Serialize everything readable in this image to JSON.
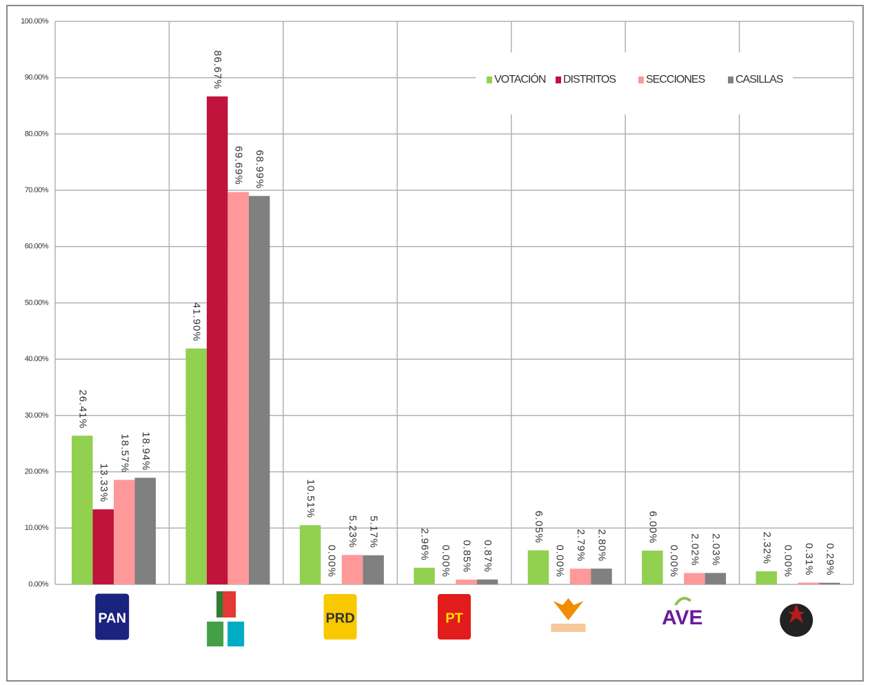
{
  "chart_data": {
    "type": "bar",
    "categories": [
      "PAN",
      null,
      "PRD",
      "PT",
      null,
      "AVE",
      null
    ],
    "series": [
      {
        "name": "VOTACIÓN",
        "color": "#92d050",
        "values": [
          26.41,
          41.9,
          10.51,
          2.96,
          6.05,
          6.0,
          2.32
        ],
        "value_labels": [
          "26.41%",
          "41.90%",
          "10.51%",
          "2.96%",
          "6.05%",
          "6.00%",
          "2.32%"
        ]
      },
      {
        "name": "DISTRITOS",
        "color": "#c0143c",
        "values": [
          13.33,
          86.67,
          0.0,
          0.0,
          0.0,
          0.0,
          0.0
        ],
        "value_labels": [
          "13.33%",
          "86.67%",
          "0.00%",
          "0.00%",
          "0.00%",
          "0.00%",
          "0.00%"
        ]
      },
      {
        "name": "SECCIONES",
        "color": "#ff9999",
        "values": [
          18.57,
          69.69,
          5.23,
          0.85,
          2.79,
          2.02,
          0.31
        ],
        "value_labels": [
          "18.57%",
          "69.69%",
          "5.23%",
          "0.85%",
          "2.79%",
          "2.02%",
          "0.31%"
        ]
      },
      {
        "name": "CASILLAS",
        "color": "#808080",
        "values": [
          18.94,
          68.99,
          5.17,
          0.87,
          2.8,
          2.03,
          0.29
        ],
        "value_labels": [
          "18.94%",
          "68.99%",
          "5.17%",
          "0.87%",
          "2.80%",
          "2.03%",
          "0.29%"
        ]
      }
    ],
    "ylim": [
      0,
      100
    ],
    "yticks": [
      {
        "value": 0,
        "label": "0.00%"
      },
      {
        "value": 10,
        "label": "10.00%"
      },
      {
        "value": 20,
        "label": "20.00%"
      },
      {
        "value": 30,
        "label": "30.00%"
      },
      {
        "value": 40,
        "label": "40.00%"
      },
      {
        "value": 50,
        "label": "50.00%"
      },
      {
        "value": 60,
        "label": "60.00%"
      },
      {
        "value": 70,
        "label": "70.00%"
      },
      {
        "value": 80,
        "label": "80.00%"
      },
      {
        "value": 90,
        "label": "90.00%"
      },
      {
        "value": 100,
        "label": "100.00%"
      }
    ],
    "grid": true,
    "legend": "top-right"
  }
}
